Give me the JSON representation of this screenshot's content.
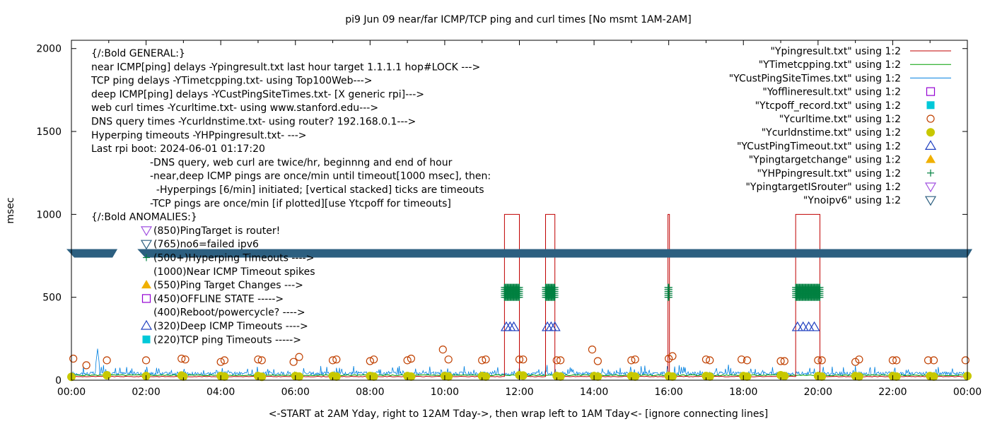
{
  "chart_data": {
    "type": "line",
    "title": "pi9 Jun 09  near/far ICMP/TCP ping and curl times [No msmt 1AM-2AM]",
    "xlabel": "<-START at 2AM Yday, right to 12AM Tday->, then wrap left to 1AM Tday<- [ignore connecting lines]",
    "ylabel": "msec",
    "xlim": [
      0,
      24
    ],
    "ylim": [
      0,
      2050
    ],
    "x_ticks": [
      {
        "value": 0,
        "label": "00:00"
      },
      {
        "value": 2,
        "label": "02:00"
      },
      {
        "value": 4,
        "label": "04:00"
      },
      {
        "value": 6,
        "label": "06:00"
      },
      {
        "value": 8,
        "label": "08:00"
      },
      {
        "value": 10,
        "label": "10:00"
      },
      {
        "value": 12,
        "label": "12:00"
      },
      {
        "value": 14,
        "label": "14:00"
      },
      {
        "value": 16,
        "label": "16:00"
      },
      {
        "value": 18,
        "label": "18:00"
      },
      {
        "value": 20,
        "label": "20:00"
      },
      {
        "value": 22,
        "label": "22:00"
      },
      {
        "value": 24,
        "label": "00:00"
      }
    ],
    "y_ticks": [
      {
        "value": 0,
        "label": "0"
      },
      {
        "value": 500,
        "label": "500"
      },
      {
        "value": 1000,
        "label": "1000"
      },
      {
        "value": 1500,
        "label": "1500"
      },
      {
        "value": 2000,
        "label": "2000"
      }
    ],
    "grid": false,
    "legend_position": "top-right",
    "annotations_general": [
      "{/:Bold GENERAL:}",
      "near ICMP[ping] delays -Ypingresult.txt last hour target 1.1.1.1 hop#LOCK --->",
      "TCP ping delays -YTimetcpping.txt- using Top100Web--->",
      "deep ICMP[ping] delays -YCustPingSiteTimes.txt- [X generic rpi]--->",
      "web curl times -Ycurltime.txt- using www.stanford.edu--->",
      "DNS query times -Ycurldnstime.txt- using router? 192.168.0.1--->",
      "Hyperping timeouts -YHPpingresult.txt- --->",
      "Last rpi boot: 2024-06-01 01:17:20"
    ],
    "annotations_indented": [
      "-DNS query, web curl are twice/hr, beginnng and end of hour",
      "-near,deep ICMP pings are once/min until timeout[1000 msec], then:",
      "  -Hyperpings [6/min] initiated; [vertical stacked] ticks are timeouts",
      "-TCP pings are once/min [if plotted][use Ytcpoff for timeouts]"
    ],
    "annotations_anomalies_header": "{/:Bold ANOMALIES:}",
    "annotations_anomalies": [
      "(850)PingTarget is router!",
      "(765)no6=failed ipv6",
      "(500+)Hyperping Timeouts ---->",
      "(1000)Near ICMP Timeout spikes",
      "(550)Ping Target Changes --->",
      "(450)OFFLINE STATE ----->",
      "(400)Reboot/powercycle? ---->",
      "(320)Deep ICMP Timeouts ---->",
      "(220)TCP ping Timeouts ----->"
    ],
    "legend": [
      {
        "label": "\"Ypingresult.txt\" using 1:2",
        "kind": "line",
        "color": "#c00000"
      },
      {
        "label": "\"YTimetcpping.txt\" using 1:2",
        "kind": "line",
        "color": "#009e00"
      },
      {
        "label": "\"YCustPingSiteTimes.txt\" using 1:2",
        "kind": "line",
        "color": "#0080e0"
      },
      {
        "label": "\"Yofflineresult.txt\" using 1:2",
        "kind": "open-square",
        "color": "#9400d3"
      },
      {
        "label": "\"Ytcpoff_record.txt\" using 1:2",
        "kind": "filled-square",
        "color": "#00c8d8"
      },
      {
        "label": "\"Ycurltime.txt\" using 1:2",
        "kind": "open-circle",
        "color": "#c04000"
      },
      {
        "label": "\"Ycurldnstime.txt\" using 1:2",
        "kind": "filled-circle",
        "color": "#c8c800"
      },
      {
        "label": "\"YCustPingTimeout.txt\" using 1:2",
        "kind": "open-triangle",
        "color": "#2040c0"
      },
      {
        "label": "\"Ypingtargetchange\" using 1:2",
        "kind": "filled-triangle",
        "color": "#f0b000"
      },
      {
        "label": "\"YHPpingresult.txt\" using 1:2",
        "kind": "plus",
        "color": "#008040"
      },
      {
        "label": "\"YpingtargetISrouter\" using 1:2",
        "kind": "open-down-triangle",
        "color": "#a050e0"
      },
      {
        "label": "\"Ynoipv6\" using 1:2",
        "kind": "filled-down-triangle",
        "color": "#2c5f80"
      }
    ],
    "series": [
      {
        "name": "\"Ypingresult.txt\" using 1:2",
        "baseline": 22,
        "spikes": [
          {
            "start": 11.6,
            "end": 12.0,
            "value": 1000
          },
          {
            "start": 12.7,
            "end": 12.95,
            "value": 1000
          },
          {
            "start": 15.98,
            "end": 16.02,
            "value": 1000
          },
          {
            "start": 19.4,
            "end": 20.05,
            "value": 1000
          }
        ]
      },
      {
        "name": "\"YTimetcpping.txt\" using 1:2",
        "baseline": 30
      },
      {
        "name": "\"YCustPingSiteTimes.txt\" using 1:2",
        "baseline": 40
      },
      {
        "name": "\"Ynoipv6\" using 1:2",
        "y": 765,
        "x_segments": [
          [
            0,
            1.1
          ],
          [
            1.9,
            24
          ]
        ]
      },
      {
        "name": "\"YHPpingresult.txt\" using 1:2",
        "y_range": [
          500,
          560
        ],
        "x_ranges": [
          [
            11.6,
            12.0
          ],
          [
            12.7,
            12.95
          ],
          [
            15.98,
            16.02
          ],
          [
            19.4,
            20.05
          ]
        ]
      },
      {
        "name": "\"YCustPingTimeout.txt\" using 1:2",
        "y": 320,
        "x": [
          11.65,
          11.75,
          11.85,
          12.75,
          12.85,
          12.95,
          19.45,
          19.6,
          19.75,
          19.9
        ]
      },
      {
        "name": "\"Ycurltime.txt\" using 1:2",
        "points": [
          [
            0.05,
            130
          ],
          [
            0.4,
            90
          ],
          [
            0.95,
            120
          ],
          [
            2.0,
            120
          ],
          [
            2.95,
            130
          ],
          [
            3.05,
            125
          ],
          [
            4.0,
            110
          ],
          [
            4.1,
            120
          ],
          [
            5.0,
            125
          ],
          [
            5.1,
            120
          ],
          [
            5.95,
            110
          ],
          [
            6.1,
            140
          ],
          [
            7.0,
            120
          ],
          [
            7.1,
            125
          ],
          [
            8.0,
            115
          ],
          [
            8.1,
            125
          ],
          [
            9.0,
            120
          ],
          [
            9.1,
            130
          ],
          [
            9.95,
            185
          ],
          [
            10.1,
            125
          ],
          [
            11.0,
            120
          ],
          [
            11.1,
            125
          ],
          [
            12.0,
            125
          ],
          [
            12.1,
            125
          ],
          [
            13.0,
            120
          ],
          [
            13.1,
            120
          ],
          [
            13.95,
            185
          ],
          [
            14.1,
            115
          ],
          [
            15.0,
            120
          ],
          [
            15.1,
            125
          ],
          [
            16.0,
            130
          ],
          [
            16.1,
            145
          ],
          [
            17.0,
            125
          ],
          [
            17.1,
            120
          ],
          [
            17.95,
            125
          ],
          [
            18.1,
            120
          ],
          [
            19.0,
            115
          ],
          [
            19.1,
            115
          ],
          [
            20.0,
            120
          ],
          [
            20.1,
            120
          ],
          [
            21.0,
            110
          ],
          [
            21.1,
            125
          ],
          [
            22.0,
            120
          ],
          [
            22.1,
            120
          ],
          [
            22.95,
            120
          ],
          [
            23.1,
            120
          ],
          [
            23.95,
            120
          ]
        ]
      },
      {
        "name": "\"Ycurldnstime.txt\" using 1:2",
        "points": [
          [
            0.0,
            20
          ],
          [
            0.95,
            30
          ],
          [
            2.0,
            25
          ],
          [
            2.95,
            28
          ],
          [
            3.0,
            22
          ],
          [
            4.0,
            25
          ],
          [
            4.1,
            22
          ],
          [
            5.0,
            25
          ],
          [
            5.1,
            20
          ],
          [
            6.0,
            25
          ],
          [
            6.1,
            22
          ],
          [
            7.0,
            25
          ],
          [
            7.1,
            22
          ],
          [
            8.0,
            25
          ],
          [
            8.1,
            22
          ],
          [
            9.0,
            25
          ],
          [
            9.1,
            22
          ],
          [
            10.0,
            25
          ],
          [
            10.1,
            22
          ],
          [
            11.0,
            25
          ],
          [
            11.1,
            22
          ],
          [
            12.0,
            30
          ],
          [
            12.1,
            28
          ],
          [
            13.0,
            25
          ],
          [
            13.1,
            22
          ],
          [
            14.0,
            25
          ],
          [
            14.1,
            22
          ],
          [
            15.0,
            25
          ],
          [
            15.1,
            22
          ],
          [
            16.0,
            25
          ],
          [
            16.1,
            22
          ],
          [
            17.0,
            25
          ],
          [
            17.1,
            22
          ],
          [
            18.0,
            25
          ],
          [
            18.1,
            22
          ],
          [
            19.0,
            30
          ],
          [
            19.1,
            25
          ],
          [
            20.0,
            25
          ],
          [
            20.1,
            22
          ],
          [
            21.0,
            25
          ],
          [
            21.1,
            22
          ],
          [
            22.0,
            25
          ],
          [
            22.1,
            22
          ],
          [
            23.0,
            25
          ],
          [
            23.1,
            22
          ],
          [
            24.0,
            25
          ]
        ]
      }
    ]
  }
}
